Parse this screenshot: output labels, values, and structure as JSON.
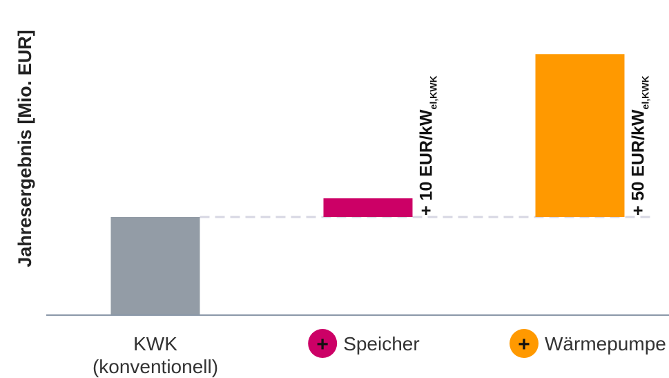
{
  "chart_data": {
    "type": "bar",
    "ylabel": "Jahresergebnis [Mio. EUR]",
    "categories": [
      {
        "lines": [
          "KWK",
          "(konventionell)"
        ],
        "has_icon": false
      },
      {
        "lines": [
          "Speicher"
        ],
        "has_icon": true
      },
      {
        "lines": [
          "Wärmepumpe"
        ],
        "has_icon": true
      }
    ],
    "bars": [
      {
        "base": 0,
        "value": 1.0,
        "color": "#939ca6"
      },
      {
        "base": 1.0,
        "value": 1.19,
        "color": "#cc0066",
        "label_main": "+ 10 EUR/kW",
        "label_sub": "el,KWK"
      },
      {
        "base": 1.0,
        "value": 2.66,
        "color": "#ff9900",
        "label_main": "+ 50 EUR/kW",
        "label_sub": "el,KWK"
      }
    ],
    "reference_line": {
      "value": 1.0,
      "style": "dashed",
      "color": "#d7d7e3"
    },
    "axis_color": "#8a98a8",
    "icon_symbol": "+",
    "ylim": [
      0,
      2.8
    ]
  }
}
